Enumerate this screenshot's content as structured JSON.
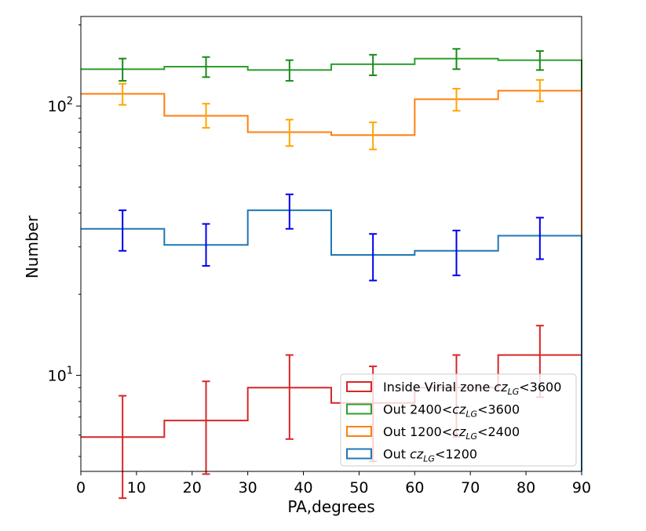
{
  "chart_data": {
    "type": "step-histogram",
    "xlabel": "PA,degrees",
    "ylabel": "Number",
    "xlim": [
      0,
      90
    ],
    "ylim": [
      4.4,
      215
    ],
    "yscale": "log",
    "bin_edges": [
      0,
      15,
      30,
      45,
      60,
      75,
      90
    ],
    "x_ticks": [
      0,
      10,
      20,
      30,
      40,
      50,
      60,
      70,
      80,
      90
    ],
    "x_tick_labels": [
      "0",
      "10",
      "20",
      "30",
      "40",
      "50",
      "60",
      "70",
      "80",
      "90"
    ],
    "y_major_ticks": [
      {
        "value": 10,
        "base": "10",
        "exp": "1"
      },
      {
        "value": 100,
        "base": "10",
        "exp": "2"
      }
    ],
    "y_minor_ticks": [
      5,
      6,
      7,
      8,
      9,
      20,
      30,
      40,
      50,
      60,
      70,
      80,
      90,
      200
    ],
    "legend_position": "lower right",
    "series": [
      {
        "name": "Inside Virial zone",
        "legend_prefix": "Inside Virial zone ",
        "legend_math": "cz",
        "legend_sub": "LG",
        "legend_suffix": "<3600",
        "color": "#d62728",
        "err_color": "#d62728",
        "values": [
          5.9,
          6.8,
          9.0,
          7.9,
          9.0,
          11.9
        ],
        "err_low": [
          3.5,
          4.3,
          5.8,
          4.8,
          5.9,
          8.3
        ],
        "err_high": [
          8.4,
          9.5,
          11.9,
          10.8,
          11.9,
          15.3
        ]
      },
      {
        "name": "Out 2400<czLG<3600",
        "legend_prefix": "Out 2400<",
        "legend_math": "cz",
        "legend_sub": "LG",
        "legend_suffix": "<3600",
        "color": "#2ca02c",
        "err_color": "#1a8a1a",
        "values": [
          137,
          140,
          136,
          143,
          150,
          148
        ],
        "err_low": [
          124,
          128,
          124,
          130,
          137,
          136
        ],
        "err_high": [
          150,
          152,
          148,
          155,
          163,
          160
        ]
      },
      {
        "name": "Out 1200<czLG<2400",
        "legend_prefix": "Out 1200<",
        "legend_math": "cz",
        "legend_sub": "LG",
        "legend_suffix": "<2400",
        "color": "#ff7f0e",
        "err_color": "#ffa500",
        "values": [
          111,
          92,
          80,
          78,
          106,
          114
        ],
        "err_low": [
          101,
          83,
          71,
          69,
          96,
          104
        ],
        "err_high": [
          121,
          102,
          89,
          87,
          116,
          125
        ]
      },
      {
        "name": "Out czLG<1200",
        "legend_prefix": "Out ",
        "legend_math": "cz",
        "legend_sub": "LG",
        "legend_suffix": "<1200",
        "color": "#1f77b4",
        "err_color": "#0000ee",
        "values": [
          35,
          30.5,
          41,
          28,
          29,
          33
        ],
        "err_low": [
          29,
          25.5,
          35,
          22.5,
          23.5,
          27
        ],
        "err_high": [
          41,
          36.5,
          47,
          33.5,
          34.5,
          38.5
        ]
      }
    ],
    "legend_order": [
      0,
      1,
      2,
      3
    ]
  }
}
